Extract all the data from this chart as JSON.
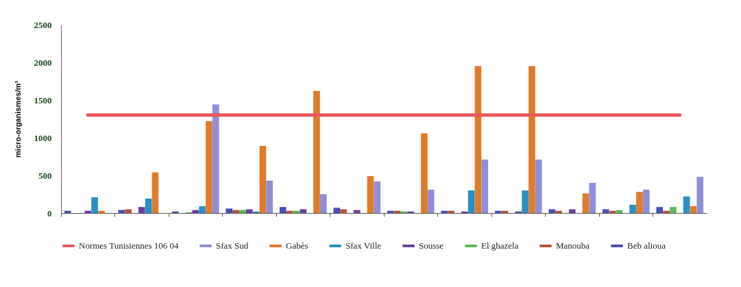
{
  "chart_data": {
    "type": "bar",
    "ylabel": "micro-organismes/m³",
    "categories": [
      null,
      null,
      null,
      null,
      null,
      null,
      null,
      null,
      null,
      null,
      null,
      null
    ],
    "series": [
      {
        "name": "Normes Tunisiennes 106 04",
        "type": "line",
        "color": "#e8585a",
        "values": [
          1300,
          1300,
          1300,
          1300,
          1300,
          1300,
          1300,
          1300,
          1300,
          1300,
          1300,
          1300
        ]
      },
      {
        "name": "Sfax Sud",
        "color": "#8e8fd6",
        "values": [
          0,
          0,
          1440,
          430,
          250,
          420,
          310,
          710,
          710,
          400,
          310,
          480
        ]
      },
      {
        "name": "Gabès",
        "color": "#e07b2a",
        "values": [
          30,
          540,
          1220,
          890,
          1620,
          490,
          1060,
          1950,
          1950,
          260,
          280,
          90
        ]
      },
      {
        "name": "Sfax Ville",
        "color": "#2a8fc4",
        "values": [
          210,
          190,
          90,
          20,
          0,
          0,
          0,
          300,
          300,
          0,
          110,
          220
        ]
      },
      {
        "name": "Sousse",
        "color": "#6a3fa0",
        "values": [
          30,
          80,
          40,
          50,
          50,
          40,
          20,
          20,
          20,
          50,
          0,
          0
        ]
      },
      {
        "name": "El ghazela",
        "color": "#5cb85c",
        "values": [
          0,
          0,
          10,
          40,
          30,
          0,
          20,
          0,
          0,
          0,
          40,
          80
        ]
      },
      {
        "name": "Manouba",
        "color": "#b5553a",
        "values": [
          0,
          50,
          0,
          40,
          30,
          50,
          30,
          30,
          30,
          30,
          30,
          30
        ]
      },
      {
        "name": "Beb alioua",
        "color": "#4a4fb0",
        "values": [
          30,
          40,
          20,
          60,
          80,
          70,
          30,
          30,
          30,
          50,
          50,
          80
        ]
      }
    ],
    "ylim": [
      0,
      2500
    ],
    "yticks": [
      0,
      500,
      1000,
      1500,
      2000,
      2500
    ],
    "grid": false,
    "legend": "bottom",
    "marker": "none",
    "line_style": "solid"
  }
}
